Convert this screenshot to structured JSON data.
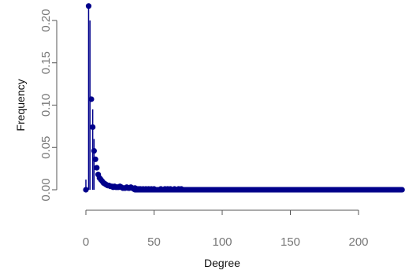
{
  "chart_data": {
    "type": "scatter",
    "xlabel": "Degree",
    "ylabel": "Frequency",
    "xlim": [
      0,
      232
    ],
    "ylim": [
      0,
      0.22
    ],
    "x_ticks": [
      0,
      50,
      100,
      150,
      200
    ],
    "x_tick_labels": [
      "0",
      "50",
      "100",
      "150",
      "200"
    ],
    "y_ticks": [
      0,
      0.05,
      0.1,
      0.15,
      0.2
    ],
    "y_tick_labels": [
      "0.00",
      "0.05",
      "0.10",
      "0.15",
      "0.20"
    ],
    "grid": false,
    "legend": "none",
    "color": "#00008B",
    "points": [
      [
        0,
        0.0
      ],
      [
        2,
        0.217
      ],
      [
        4,
        0.107
      ],
      [
        5,
        0.074
      ],
      [
        6,
        0.046
      ],
      [
        7,
        0.036
      ],
      [
        8,
        0.026
      ],
      [
        9,
        0.018
      ],
      [
        10,
        0.014
      ],
      [
        11,
        0.012
      ],
      [
        12,
        0.01
      ],
      [
        13,
        0.008
      ],
      [
        14,
        0.007
      ],
      [
        15,
        0.006
      ],
      [
        16,
        0.005
      ],
      [
        17,
        0.005
      ],
      [
        18,
        0.004
      ],
      [
        19,
        0.004
      ],
      [
        20,
        0.003
      ],
      [
        21,
        0.004
      ],
      [
        22,
        0.003
      ],
      [
        23,
        0.003
      ],
      [
        24,
        0.003
      ],
      [
        25,
        0.004
      ],
      [
        26,
        0.003
      ],
      [
        27,
        0.002
      ],
      [
        28,
        0.002
      ],
      [
        29,
        0.002
      ],
      [
        30,
        0.003
      ],
      [
        31,
        0.002
      ],
      [
        32,
        0.002
      ],
      [
        33,
        0.003
      ],
      [
        34,
        0.002
      ],
      [
        35,
        0.001
      ],
      [
        36,
        0.002
      ],
      [
        37,
        0.001
      ],
      [
        38,
        0.001
      ],
      [
        39,
        0.001
      ],
      [
        40,
        0.001
      ],
      [
        42,
        0.001
      ],
      [
        44,
        0.001
      ],
      [
        46,
        0.001
      ],
      [
        48,
        0.001
      ],
      [
        50,
        0.001
      ],
      [
        55,
        0.001
      ],
      [
        58,
        0.001
      ],
      [
        60,
        0.001
      ],
      [
        62,
        0.001
      ],
      [
        65,
        0.001
      ],
      [
        68,
        0.001
      ],
      [
        70,
        0.001
      ]
    ],
    "vertical_lines": [
      {
        "x": 0,
        "y": 0.012
      },
      {
        "x": 2,
        "y": 0.217
      },
      {
        "x": 3,
        "y": 0.2
      },
      {
        "x": 5,
        "y": 0.095
      },
      {
        "x": 6,
        "y": 0.06
      }
    ],
    "baseline": {
      "x_from": 36,
      "x_to": 232,
      "y": 0.0
    }
  }
}
